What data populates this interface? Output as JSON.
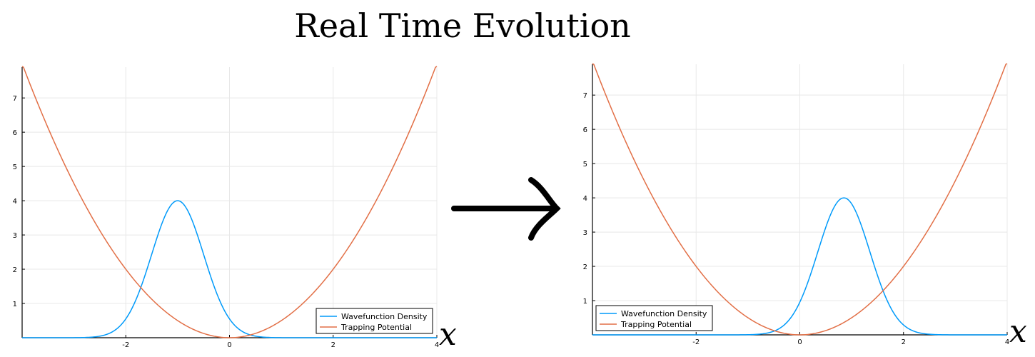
{
  "title": "Real Time Evolution",
  "colors": {
    "wavefunction": "#009AFA",
    "potential": "#E26F46",
    "grid": "#e8e8e8",
    "axis": "#000000"
  },
  "arrow_icon": "right-arrow-icon",
  "chart_data": [
    {
      "type": "line",
      "xlim": [
        -4,
        4
      ],
      "ylim": [
        0,
        7.9
      ],
      "xticks": [
        -2,
        0,
        2,
        4
      ],
      "xtick_labels": [
        "-2",
        "0",
        "2",
        "4"
      ],
      "yticks": [
        1,
        2,
        3,
        4,
        5,
        6,
        7
      ],
      "ytick_labels": [
        "1",
        "2",
        "3",
        "4",
        "5",
        "6",
        "7"
      ],
      "xlabel": "x",
      "grid": true,
      "legend_position": "bottom-right",
      "series": [
        {
          "name": "Wavefunction Density",
          "color": "#009AFA",
          "amplitude": 4.0,
          "center": -1.0,
          "width": 0.71
        },
        {
          "name": "Trapping Potential",
          "color": "#E26F46",
          "coefficient": 0.5
        }
      ]
    },
    {
      "type": "line",
      "xlim": [
        -4,
        4
      ],
      "ylim": [
        0,
        7.9
      ],
      "xticks": [
        -2,
        0,
        2,
        4
      ],
      "xtick_labels": [
        "-2",
        "0",
        "2",
        "4"
      ],
      "yticks": [
        1,
        2,
        3,
        4,
        5,
        6,
        7
      ],
      "ytick_labels": [
        "1",
        "2",
        "3",
        "4",
        "5",
        "6",
        "7"
      ],
      "xlabel": "x",
      "grid": true,
      "legend_position": "bottom-left",
      "series": [
        {
          "name": "Wavefunction Density",
          "color": "#009AFA",
          "amplitude": 4.0,
          "center": 0.85,
          "width": 0.71
        },
        {
          "name": "Trapping Potential",
          "color": "#E26F46",
          "coefficient": 0.5
        }
      ]
    }
  ]
}
